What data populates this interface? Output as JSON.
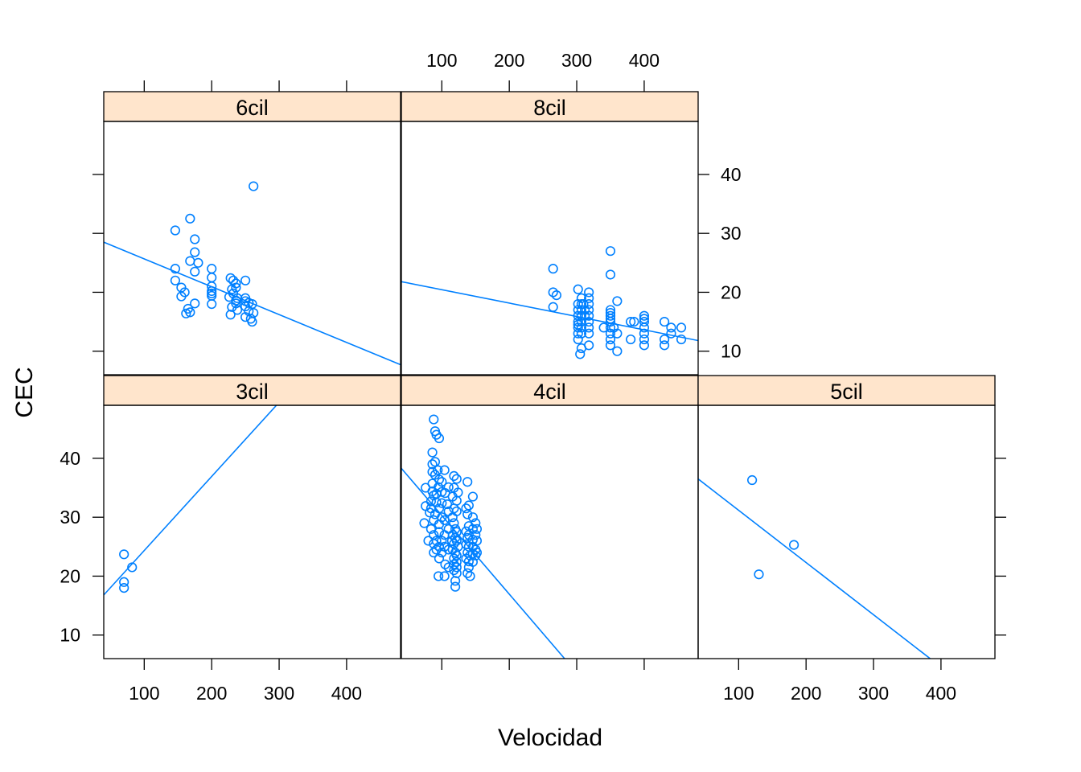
{
  "chart_data": {
    "type": "scatter",
    "xlabel": "Velocidad",
    "ylabel": "CEC",
    "xlim": [
      40,
      480
    ],
    "ylim": [
      6,
      49
    ],
    "xticks": [
      100,
      200,
      300,
      400
    ],
    "yticks": [
      10,
      20,
      30,
      40
    ],
    "colors": {
      "points": "#0080ff",
      "lines": "#0080ff",
      "strip": "#ffe5cc",
      "frame": "#000000"
    },
    "panels": [
      {
        "name": "6cil",
        "regression": [
          [
            40,
            28.5
          ],
          [
            480,
            7.7
          ]
        ],
        "points": [
          [
            262,
            38
          ],
          [
            168,
            32.5
          ],
          [
            146,
            30.5
          ],
          [
            175,
            29
          ],
          [
            175,
            26.8
          ],
          [
            168,
            25.3
          ],
          [
            180,
            25
          ],
          [
            146,
            24
          ],
          [
            175,
            23.5
          ],
          [
            200,
            24
          ],
          [
            146,
            22
          ],
          [
            155,
            20.8
          ],
          [
            155,
            19.3
          ],
          [
            160,
            20
          ],
          [
            175,
            18.1
          ],
          [
            165,
            17.2
          ],
          [
            162,
            16.4
          ],
          [
            168,
            16.6
          ],
          [
            200,
            22.5
          ],
          [
            200,
            21
          ],
          [
            200,
            20.2
          ],
          [
            200,
            19.8
          ],
          [
            200,
            19.4
          ],
          [
            200,
            18
          ],
          [
            228,
            22.4
          ],
          [
            232,
            22
          ],
          [
            236,
            21.5
          ],
          [
            236,
            20.8
          ],
          [
            230,
            20.5
          ],
          [
            232,
            19.8
          ],
          [
            226,
            19.2
          ],
          [
            238,
            19
          ],
          [
            236,
            18.6
          ],
          [
            230,
            17.5
          ],
          [
            236,
            18.1
          ],
          [
            228,
            16.2
          ],
          [
            238,
            17
          ],
          [
            250,
            22
          ],
          [
            250,
            19
          ],
          [
            250,
            18.5
          ],
          [
            255,
            18.2
          ],
          [
            260,
            18
          ],
          [
            250,
            17.6
          ],
          [
            255,
            16.8
          ],
          [
            262,
            16.5
          ],
          [
            250,
            15.8
          ],
          [
            258,
            15.5
          ],
          [
            260,
            15
          ]
        ]
      },
      {
        "name": "8cil",
        "regression": [
          [
            40,
            21.8
          ],
          [
            480,
            11.8
          ]
        ],
        "points": [
          [
            265,
            24
          ],
          [
            265,
            20
          ],
          [
            270,
            19.5
          ],
          [
            265,
            17.5
          ],
          [
            302,
            20.5
          ],
          [
            302,
            18
          ],
          [
            302,
            17
          ],
          [
            302,
            16
          ],
          [
            302,
            15
          ],
          [
            302,
            14.5
          ],
          [
            302,
            14
          ],
          [
            302,
            13
          ],
          [
            302,
            12
          ],
          [
            305,
            9.5
          ],
          [
            307,
            19
          ],
          [
            307,
            18
          ],
          [
            307,
            17
          ],
          [
            307,
            16
          ],
          [
            307,
            15
          ],
          [
            307,
            14
          ],
          [
            307,
            13
          ],
          [
            307,
            10.5
          ],
          [
            310,
            18
          ],
          [
            312,
            17
          ],
          [
            312,
            16
          ],
          [
            318,
            20
          ],
          [
            318,
            19
          ],
          [
            318,
            18
          ],
          [
            318,
            17
          ],
          [
            318,
            16
          ],
          [
            318,
            15
          ],
          [
            318,
            14
          ],
          [
            318,
            13
          ],
          [
            318,
            11
          ],
          [
            340,
            14
          ],
          [
            350,
            27
          ],
          [
            350,
            23
          ],
          [
            350,
            17
          ],
          [
            350,
            16.5
          ],
          [
            350,
            16
          ],
          [
            350,
            15.5
          ],
          [
            350,
            15
          ],
          [
            350,
            14
          ],
          [
            350,
            13
          ],
          [
            350,
            12
          ],
          [
            350,
            11
          ],
          [
            355,
            14
          ],
          [
            360,
            18.5
          ],
          [
            360,
            13
          ],
          [
            360,
            10
          ],
          [
            380,
            15
          ],
          [
            380,
            12
          ],
          [
            385,
            15
          ],
          [
            400,
            16
          ],
          [
            400,
            15.5
          ],
          [
            400,
            15
          ],
          [
            400,
            14
          ],
          [
            400,
            13
          ],
          [
            400,
            12
          ],
          [
            400,
            11
          ],
          [
            430,
            15
          ],
          [
            430,
            12
          ],
          [
            430,
            11
          ],
          [
            440,
            14
          ],
          [
            440,
            13
          ],
          [
            455,
            14
          ],
          [
            455,
            12
          ]
        ]
      },
      {
        "name": "3cil",
        "regression": [
          [
            40,
            16.8
          ],
          [
            296,
            49
          ]
        ],
        "points": [
          [
            70,
            23.7
          ],
          [
            82,
            21.5
          ],
          [
            70,
            19
          ],
          [
            70,
            18
          ]
        ]
      },
      {
        "name": "4cil",
        "regression": [
          [
            40,
            38.3
          ],
          [
            282,
            6
          ]
        ],
        "points": [
          [
            88,
            46.6
          ],
          [
            90,
            44.6
          ],
          [
            92,
            44
          ],
          [
            96,
            43.4
          ],
          [
            86,
            41
          ],
          [
            90,
            39.4
          ],
          [
            86,
            39
          ],
          [
            94,
            38
          ],
          [
            104,
            38
          ],
          [
            86,
            37.7
          ],
          [
            90,
            37.2
          ],
          [
            96,
            36.4
          ],
          [
            100,
            36
          ],
          [
            86,
            35.7
          ],
          [
            95,
            35.1
          ],
          [
            110,
            35.1
          ],
          [
            76,
            35
          ],
          [
            86,
            34.4
          ],
          [
            100,
            34.3
          ],
          [
            105,
            34.1
          ],
          [
            92,
            34
          ],
          [
            88,
            33.7
          ],
          [
            84,
            32.7
          ],
          [
            92,
            32.5
          ],
          [
            100,
            32.4
          ],
          [
            108,
            32.2
          ],
          [
            76,
            31.9
          ],
          [
            84,
            31.5
          ],
          [
            96,
            31.5
          ],
          [
            110,
            31
          ],
          [
            82,
            30.8
          ],
          [
            90,
            30.5
          ],
          [
            100,
            30
          ],
          [
            88,
            29.5
          ],
          [
            104,
            29.5
          ],
          [
            74,
            29
          ],
          [
            96,
            28.8
          ],
          [
            84,
            28
          ],
          [
            110,
            28
          ],
          [
            96,
            27.5
          ],
          [
            88,
            27
          ],
          [
            104,
            27
          ],
          [
            80,
            26
          ],
          [
            92,
            26
          ],
          [
            100,
            26
          ],
          [
            115,
            26
          ],
          [
            88,
            25.5
          ],
          [
            96,
            25
          ],
          [
            104,
            25
          ],
          [
            92,
            24.5
          ],
          [
            110,
            24.5
          ],
          [
            88,
            24
          ],
          [
            100,
            24
          ],
          [
            96,
            23
          ],
          [
            105,
            22
          ],
          [
            110,
            21.5
          ],
          [
            95,
            20
          ],
          [
            104,
            20
          ],
          [
            118,
            37
          ],
          [
            122,
            36.5
          ],
          [
            118,
            35
          ],
          [
            124,
            34.2
          ],
          [
            116,
            33.5
          ],
          [
            122,
            32.8
          ],
          [
            118,
            31.5
          ],
          [
            122,
            31
          ],
          [
            116,
            30
          ],
          [
            118,
            29
          ],
          [
            120,
            28
          ],
          [
            122,
            27.5
          ],
          [
            116,
            27
          ],
          [
            120,
            26.5
          ],
          [
            122,
            26
          ],
          [
            118,
            25.5
          ],
          [
            124,
            25
          ],
          [
            116,
            24.5
          ],
          [
            120,
            24
          ],
          [
            122,
            23.5
          ],
          [
            118,
            23
          ],
          [
            122,
            22.4
          ],
          [
            118,
            22
          ],
          [
            122,
            21.5
          ],
          [
            118,
            21
          ],
          [
            122,
            20.5
          ],
          [
            120,
            19.2
          ],
          [
            120,
            18.2
          ],
          [
            138,
            36
          ],
          [
            146,
            33.5
          ],
          [
            140,
            32
          ],
          [
            136,
            31.5
          ],
          [
            138,
            30.5
          ],
          [
            146,
            30
          ],
          [
            150,
            29
          ],
          [
            140,
            28.5
          ],
          [
            146,
            28
          ],
          [
            152,
            28
          ],
          [
            136,
            27.6
          ],
          [
            140,
            27
          ],
          [
            150,
            27
          ],
          [
            138,
            26.5
          ],
          [
            146,
            26.2
          ],
          [
            152,
            26
          ],
          [
            136,
            25.4
          ],
          [
            140,
            25
          ],
          [
            146,
            25
          ],
          [
            150,
            24.5
          ],
          [
            138,
            24
          ],
          [
            142,
            23.5
          ],
          [
            146,
            23.8
          ],
          [
            152,
            24
          ],
          [
            136,
            23
          ],
          [
            140,
            22.5
          ],
          [
            146,
            22.4
          ],
          [
            150,
            23.5
          ],
          [
            140,
            21.5
          ],
          [
            138,
            20.5
          ],
          [
            142,
            20
          ]
        ]
      },
      {
        "name": "5cil",
        "regression": [
          [
            40,
            36.5
          ],
          [
            384,
            6
          ]
        ],
        "points": [
          [
            120,
            36.3
          ],
          [
            182,
            25.3
          ],
          [
            130,
            20.3
          ]
        ]
      }
    ]
  }
}
